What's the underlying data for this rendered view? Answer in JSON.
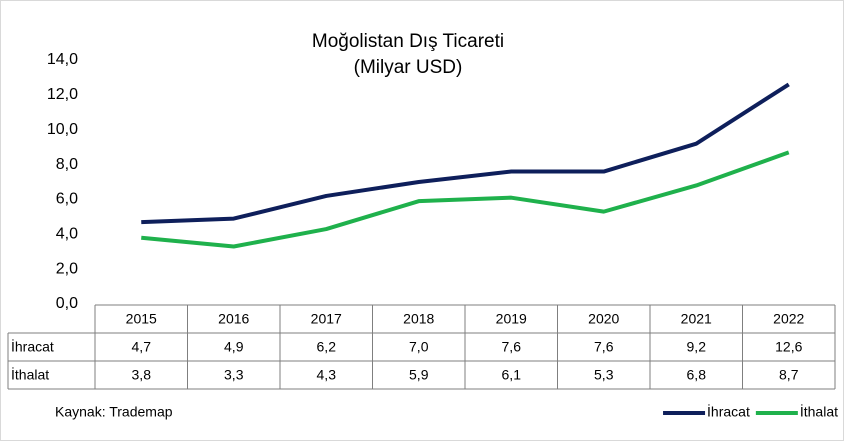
{
  "chart_data": {
    "type": "line",
    "title": "Moğolistan Dış Ticareti",
    "subtitle": "(Milyar USD)",
    "source": "Kaynak: Trademap",
    "categories": [
      "2015",
      "2016",
      "2017",
      "2018",
      "2019",
      "2020",
      "2021",
      "2022"
    ],
    "series": [
      {
        "name": "İhracat",
        "color": "#0e1f5b",
        "values": [
          4.7,
          4.9,
          6.2,
          7.0,
          7.6,
          7.6,
          9.2,
          12.6
        ],
        "value_labels": [
          "4,7",
          "4,9",
          "6,2",
          "7,0",
          "7,6",
          "7,6",
          "9,2",
          "12,6"
        ]
      },
      {
        "name": "İthalat",
        "color": "#1fb14c",
        "values": [
          3.8,
          3.3,
          4.3,
          5.9,
          6.1,
          5.3,
          6.8,
          8.7
        ],
        "value_labels": [
          "3,8",
          "3,3",
          "4,3",
          "5,9",
          "6,1",
          "5,3",
          "6,8",
          "8,7"
        ]
      }
    ],
    "ylim": [
      0,
      14
    ],
    "yticks": [
      {
        "value": 0,
        "label": "0,0"
      },
      {
        "value": 2,
        "label": "2,0"
      },
      {
        "value": 4,
        "label": "4,0"
      },
      {
        "value": 6,
        "label": "6,0"
      },
      {
        "value": 8,
        "label": "8,0"
      },
      {
        "value": 10,
        "label": "10,0"
      },
      {
        "value": 12,
        "label": "12,0"
      },
      {
        "value": 14,
        "label": "14,0"
      }
    ],
    "legend": "bottom-right"
  }
}
